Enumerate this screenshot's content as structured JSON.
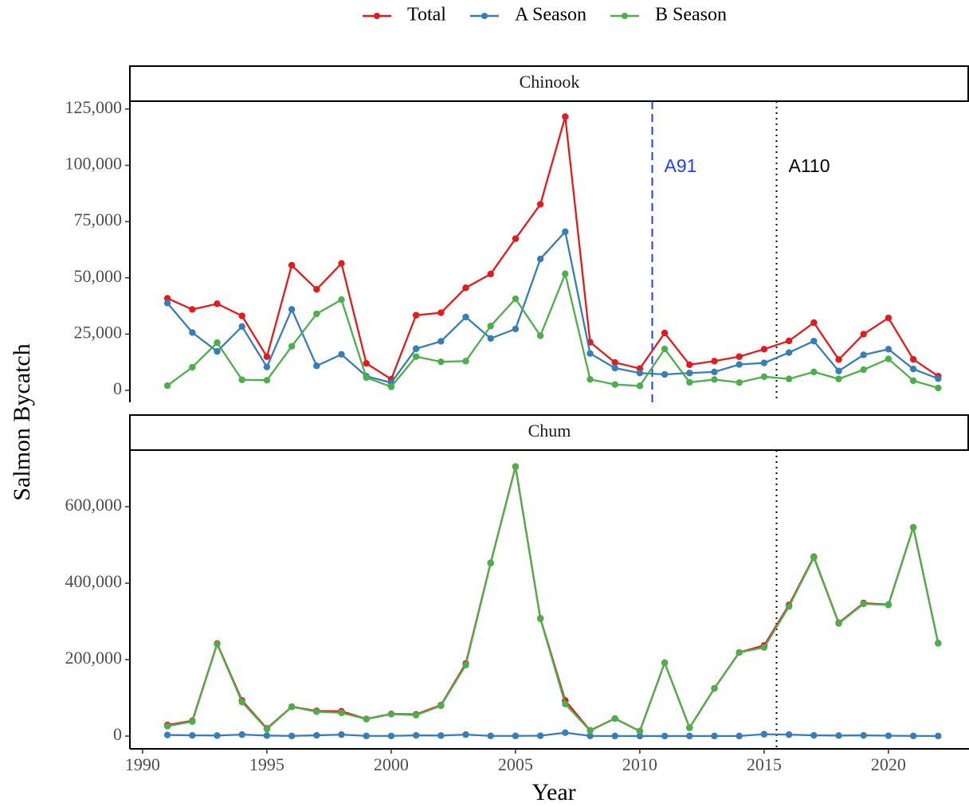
{
  "chart_data": [
    {
      "type": "line",
      "title": "Chinook",
      "ylabel": "Salmon Bycatch",
      "x": [
        1991,
        1992,
        1993,
        1994,
        1995,
        1996,
        1997,
        1998,
        1999,
        2000,
        2001,
        2002,
        2003,
        2004,
        2005,
        2006,
        2007,
        2008,
        2009,
        2010,
        2011,
        2012,
        2013,
        2014,
        2015,
        2016,
        2017,
        2018,
        2019,
        2020,
        2021,
        2022
      ],
      "xlim": [
        1989.49,
        2023.24
      ],
      "ylim": [
        -5300,
        128500
      ],
      "yticks": [
        0,
        {
          "value": 25000,
          "label": "25,000"
        },
        {
          "value": 50000,
          "label": "50,000"
        },
        {
          "value": 75000,
          "label": "75,000"
        },
        {
          "value": 100000,
          "label": "100,000"
        },
        {
          "value": 125000,
          "label": "125,000"
        }
      ],
      "series": [
        {
          "name": "Total",
          "color": "#e41a1c",
          "values": [
            40900,
            35950,
            38500,
            33100,
            15000,
            55600,
            44900,
            56400,
            12000,
            4960,
            33400,
            34500,
            45600,
            51700,
            67400,
            82700,
            121600,
            21400,
            12400,
            9700,
            25500,
            11400,
            13000,
            15000,
            18300,
            22000,
            30100,
            13700,
            25000,
            32200,
            13800,
            6300
          ]
        },
        {
          "name": "A Season",
          "color": "#377eb8",
          "values": [
            38800,
            25700,
            17300,
            28400,
            10400,
            36000,
            10900,
            16000,
            6300,
            3400,
            18500,
            21800,
            32600,
            23100,
            27300,
            58400,
            70500,
            16400,
            9900,
            7700,
            7100,
            7700,
            8200,
            11500,
            12200,
            16800,
            21900,
            8600,
            15800,
            18300,
            9500,
            5200
          ]
        },
        {
          "name": "B Season",
          "color": "#4daf4a",
          "values": [
            2100,
            10300,
            21200,
            4700,
            4500,
            19600,
            34000,
            40300,
            5700,
            1600,
            15000,
            12700,
            13000,
            28600,
            40700,
            24300,
            51800,
            4900,
            2600,
            2000,
            18400,
            3600,
            4800,
            3500,
            6100,
            5100,
            8200,
            5100,
            9200,
            14000,
            4300,
            1100
          ]
        }
      ],
      "annotations": [
        {
          "x": 2010.5,
          "label": "A91",
          "color": "#1f3fff",
          "style": "dashed"
        },
        {
          "x": 2015.5,
          "label": "A110",
          "color": "#000000",
          "style": "dotted"
        }
      ]
    },
    {
      "type": "line",
      "title": "Chum",
      "xlabel": "Year",
      "x": [
        1991,
        1992,
        1993,
        1994,
        1995,
        1996,
        1997,
        1998,
        1999,
        2000,
        2001,
        2002,
        2003,
        2004,
        2005,
        2006,
        2007,
        2008,
        2009,
        2010,
        2011,
        2012,
        2013,
        2014,
        2015,
        2016,
        2017,
        2018,
        2019,
        2020,
        2021,
        2022
      ],
      "xlim": [
        1989.49,
        2023.24
      ],
      "xticks": [
        1990,
        1995,
        2000,
        2005,
        2010,
        2015,
        2020
      ],
      "ylim": [
        -33300,
        748000
      ],
      "yticks": [
        0,
        {
          "value": 200000,
          "label": "200,000"
        },
        {
          "value": 400000,
          "label": "400,000"
        },
        {
          "value": 600000,
          "label": "600,000"
        }
      ],
      "series": [
        {
          "name": "Total",
          "color": "#e41a1c",
          "values": [
            29000,
            40000,
            242000,
            93000,
            20000,
            77000,
            66000,
            65000,
            45000,
            58000,
            57000,
            81000,
            190000,
            453000,
            705000,
            308000,
            93000,
            15000,
            46000,
            13000,
            192000,
            22000,
            125000,
            219000,
            237000,
            343000,
            469000,
            296000,
            348000,
            344000,
            546000,
            243000
          ]
        },
        {
          "name": "A Season",
          "color": "#377eb8",
          "values": [
            3000,
            2000,
            1500,
            4000,
            1500,
            500,
            2000,
            4000,
            500,
            500,
            2000,
            1500,
            4000,
            600,
            600,
            1000,
            9000,
            500,
            300,
            300,
            200,
            300,
            300,
            300,
            5000,
            4000,
            2000,
            1500,
            2000,
            1000,
            500,
            300
          ]
        },
        {
          "name": "B Season",
          "color": "#4daf4a",
          "values": [
            26000,
            38000,
            240500,
            89000,
            18500,
            76500,
            64000,
            61000,
            44500,
            57500,
            55000,
            79500,
            186000,
            452400,
            704400,
            307000,
            84000,
            14500,
            45700,
            12700,
            191800,
            21700,
            124700,
            218700,
            232000,
            339000,
            467000,
            294500,
            346000,
            343000,
            545500,
            242700
          ]
        }
      ],
      "annotations": [
        {
          "x": 2015.5,
          "color": "#000000",
          "style": "dotted"
        }
      ]
    }
  ]
}
